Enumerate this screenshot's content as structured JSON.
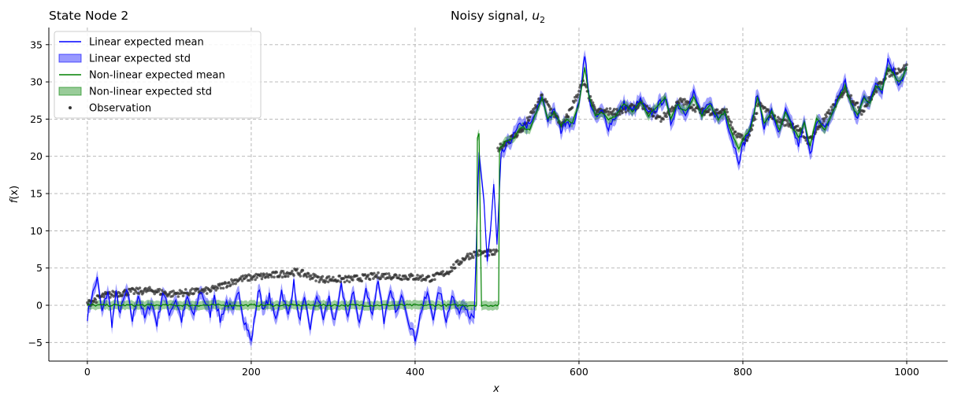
{
  "chart_data": {
    "type": "line",
    "title_left": "State Node 2",
    "title": "Noisy signal, ",
    "title_math": "u",
    "title_math_sub": "2",
    "xlabel": "x",
    "ylabel_f": "f",
    "ylabel_arg": "(x)",
    "xlim": [
      -47,
      1050
    ],
    "ylim": [
      -7.5,
      37.3
    ],
    "xticks": [
      0,
      200,
      400,
      600,
      800,
      1000
    ],
    "yticks": [
      -5,
      0,
      5,
      10,
      15,
      20,
      25,
      30,
      35
    ],
    "grid": true,
    "legend_position": "top-left",
    "colors": {
      "linear": "#0000ff",
      "linear_band": "#0000ff",
      "nonlinear": "#008000",
      "nonlinear_band": "#008000",
      "observation": "#333333",
      "grid": "#b0b0b0"
    },
    "legend": [
      {
        "label": "Linear expected mean",
        "kind": "line",
        "series": "linear"
      },
      {
        "label": "Linear expected std",
        "kind": "band",
        "series": "linear"
      },
      {
        "label": "Non-linear expected mean",
        "kind": "line",
        "series": "nonlinear"
      },
      {
        "label": "Non-linear expected std",
        "kind": "band",
        "series": "nonlinear"
      },
      {
        "label": "Observation",
        "kind": "point",
        "series": "observation"
      }
    ],
    "observation_anchors": [
      [
        0,
        0.2
      ],
      [
        20,
        1.3
      ],
      [
        50,
        1.8
      ],
      [
        80,
        2.0
      ],
      [
        100,
        1.5
      ],
      [
        150,
        2.0
      ],
      [
        185,
        3.5
      ],
      [
        205,
        3.8
      ],
      [
        225,
        4.0
      ],
      [
        255,
        4.5
      ],
      [
        285,
        3.5
      ],
      [
        320,
        3.5
      ],
      [
        360,
        4.0
      ],
      [
        395,
        3.8
      ],
      [
        420,
        3.6
      ],
      [
        440,
        4.5
      ],
      [
        462,
        6.5
      ],
      [
        475,
        7.0
      ],
      [
        500,
        7.0
      ],
      [
        501,
        21
      ],
      [
        530,
        23.5
      ],
      [
        555,
        28
      ],
      [
        580,
        24
      ],
      [
        605,
        30
      ],
      [
        620,
        26
      ],
      [
        650,
        26
      ],
      [
        675,
        27
      ],
      [
        700,
        25
      ],
      [
        725,
        27.5
      ],
      [
        750,
        26
      ],
      [
        780,
        26
      ],
      [
        790,
        23
      ],
      [
        805,
        22
      ],
      [
        820,
        27
      ],
      [
        840,
        25
      ],
      [
        865,
        24
      ],
      [
        880,
        22
      ],
      [
        900,
        25
      ],
      [
        925,
        29
      ],
      [
        945,
        26
      ],
      [
        975,
        31
      ],
      [
        1000,
        32
      ]
    ],
    "series": [
      {
        "name": "Linear expected mean",
        "key": "linear",
        "std": 0.9,
        "points": [
          [
            0,
            -1.5
          ],
          [
            5,
            1
          ],
          [
            12,
            3.5
          ],
          [
            18,
            -1
          ],
          [
            25,
            2
          ],
          [
            30,
            -2.5
          ],
          [
            35,
            1.5
          ],
          [
            40,
            -1
          ],
          [
            48,
            2
          ],
          [
            55,
            -2
          ],
          [
            62,
            1.5
          ],
          [
            70,
            -1.8
          ],
          [
            78,
            0.5
          ],
          [
            85,
            -2.5
          ],
          [
            92,
            1.8
          ],
          [
            100,
            -1
          ],
          [
            108,
            0.8
          ],
          [
            115,
            -2
          ],
          [
            122,
            1
          ],
          [
            130,
            -1.5
          ],
          [
            138,
            2
          ],
          [
            145,
            0.2
          ],
          [
            150,
            -1.2
          ],
          [
            155,
            1.5
          ],
          [
            162,
            -2
          ],
          [
            170,
            0.5
          ],
          [
            178,
            -1
          ],
          [
            185,
            2
          ],
          [
            190,
            -1.5
          ],
          [
            195,
            -3
          ],
          [
            200,
            -5
          ],
          [
            205,
            -1
          ],
          [
            210,
            2.5
          ],
          [
            215,
            -1
          ],
          [
            222,
            1.2
          ],
          [
            230,
            -2
          ],
          [
            237,
            2
          ],
          [
            245,
            -1.5
          ],
          [
            252,
            3
          ],
          [
            258,
            -2
          ],
          [
            265,
            0.5
          ],
          [
            272,
            -3
          ],
          [
            280,
            1.5
          ],
          [
            288,
            -1.8
          ],
          [
            295,
            1
          ],
          [
            302,
            -2.5
          ],
          [
            310,
            2.5
          ],
          [
            318,
            -1.5
          ],
          [
            325,
            1.8
          ],
          [
            332,
            -2.5
          ],
          [
            340,
            2
          ],
          [
            348,
            -1
          ],
          [
            355,
            3.5
          ],
          [
            362,
            -2
          ],
          [
            370,
            1.5
          ],
          [
            378,
            -1
          ],
          [
            385,
            1.5
          ],
          [
            392,
            -2
          ],
          [
            400,
            -4.5
          ],
          [
            408,
            -0.5
          ],
          [
            415,
            1.5
          ],
          [
            422,
            -1.5
          ],
          [
            430,
            2
          ],
          [
            438,
            -2
          ],
          [
            445,
            1.5
          ],
          [
            452,
            -1
          ],
          [
            460,
            0.5
          ],
          [
            467,
            -1.5
          ],
          [
            472,
            -2
          ],
          [
            478,
            20
          ],
          [
            484,
            14
          ],
          [
            488,
            6
          ],
          [
            492,
            10
          ],
          [
            496,
            16
          ],
          [
            500,
            8
          ],
          [
            505,
            20
          ],
          [
            510,
            21
          ],
          [
            515,
            22
          ],
          [
            522,
            23
          ],
          [
            530,
            24.5
          ],
          [
            540,
            24
          ],
          [
            548,
            26
          ],
          [
            555,
            28
          ],
          [
            562,
            25
          ],
          [
            570,
            26
          ],
          [
            578,
            23.5
          ],
          [
            585,
            25
          ],
          [
            592,
            24
          ],
          [
            600,
            27
          ],
          [
            607,
            34
          ],
          [
            612,
            28
          ],
          [
            620,
            25
          ],
          [
            628,
            26
          ],
          [
            636,
            24
          ],
          [
            645,
            25.5
          ],
          [
            655,
            27
          ],
          [
            665,
            26
          ],
          [
            675,
            27.5
          ],
          [
            685,
            25.5
          ],
          [
            695,
            26.5
          ],
          [
            705,
            28
          ],
          [
            712,
            24.5
          ],
          [
            720,
            27
          ],
          [
            730,
            26
          ],
          [
            740,
            28.5
          ],
          [
            750,
            25.5
          ],
          [
            760,
            27
          ],
          [
            770,
            25
          ],
          [
            778,
            26
          ],
          [
            785,
            23
          ],
          [
            795,
            19.5
          ],
          [
            802,
            22
          ],
          [
            810,
            24
          ],
          [
            818,
            28.5
          ],
          [
            826,
            24
          ],
          [
            835,
            26
          ],
          [
            845,
            23
          ],
          [
            852,
            26
          ],
          [
            860,
            24
          ],
          [
            868,
            21.5
          ],
          [
            875,
            24.5
          ],
          [
            882,
            20
          ],
          [
            890,
            25
          ],
          [
            900,
            23.5
          ],
          [
            910,
            26
          ],
          [
            918,
            28.5
          ],
          [
            925,
            30
          ],
          [
            932,
            27
          ],
          [
            940,
            25
          ],
          [
            948,
            28.5
          ],
          [
            955,
            27
          ],
          [
            962,
            30
          ],
          [
            970,
            29
          ],
          [
            977,
            33
          ],
          [
            984,
            31.5
          ],
          [
            990,
            30
          ],
          [
            995,
            30.5
          ],
          [
            1000,
            32
          ]
        ]
      },
      {
        "name": "Non-linear expected mean",
        "key": "nonlinear",
        "std": 0.6,
        "points": [
          [
            0,
            0
          ],
          [
            474,
            0
          ],
          [
            475,
            0
          ],
          [
            476,
            22.5
          ],
          [
            478,
            23
          ],
          [
            481,
            0
          ],
          [
            502,
            0
          ],
          [
            503,
            21
          ],
          [
            510,
            22
          ],
          [
            520,
            22.5
          ],
          [
            530,
            24
          ],
          [
            540,
            23.5
          ],
          [
            548,
            26
          ],
          [
            555,
            28
          ],
          [
            562,
            25
          ],
          [
            570,
            26
          ],
          [
            578,
            24
          ],
          [
            585,
            25
          ],
          [
            592,
            24.5
          ],
          [
            600,
            27
          ],
          [
            607,
            32
          ],
          [
            612,
            28
          ],
          [
            620,
            25.5
          ],
          [
            628,
            26
          ],
          [
            636,
            25
          ],
          [
            645,
            25.5
          ],
          [
            655,
            27
          ],
          [
            665,
            26
          ],
          [
            675,
            27.5
          ],
          [
            685,
            25.5
          ],
          [
            695,
            26.5
          ],
          [
            705,
            28
          ],
          [
            712,
            25
          ],
          [
            720,
            27
          ],
          [
            730,
            26
          ],
          [
            740,
            28
          ],
          [
            750,
            25.5
          ],
          [
            760,
            27
          ],
          [
            770,
            25
          ],
          [
            778,
            26
          ],
          [
            785,
            23.5
          ],
          [
            795,
            21
          ],
          [
            802,
            22.5
          ],
          [
            810,
            24
          ],
          [
            818,
            28
          ],
          [
            826,
            24.5
          ],
          [
            835,
            26
          ],
          [
            845,
            23.5
          ],
          [
            852,
            26
          ],
          [
            860,
            24
          ],
          [
            868,
            22.5
          ],
          [
            875,
            24.5
          ],
          [
            882,
            21.5
          ],
          [
            890,
            25
          ],
          [
            900,
            23.5
          ],
          [
            910,
            26
          ],
          [
            918,
            28
          ],
          [
            925,
            29.5
          ],
          [
            932,
            27
          ],
          [
            940,
            25.5
          ],
          [
            948,
            28
          ],
          [
            955,
            27
          ],
          [
            962,
            29.5
          ],
          [
            970,
            29
          ],
          [
            977,
            32
          ],
          [
            984,
            31
          ],
          [
            990,
            30
          ],
          [
            995,
            30.5
          ],
          [
            1000,
            32
          ]
        ]
      }
    ]
  }
}
